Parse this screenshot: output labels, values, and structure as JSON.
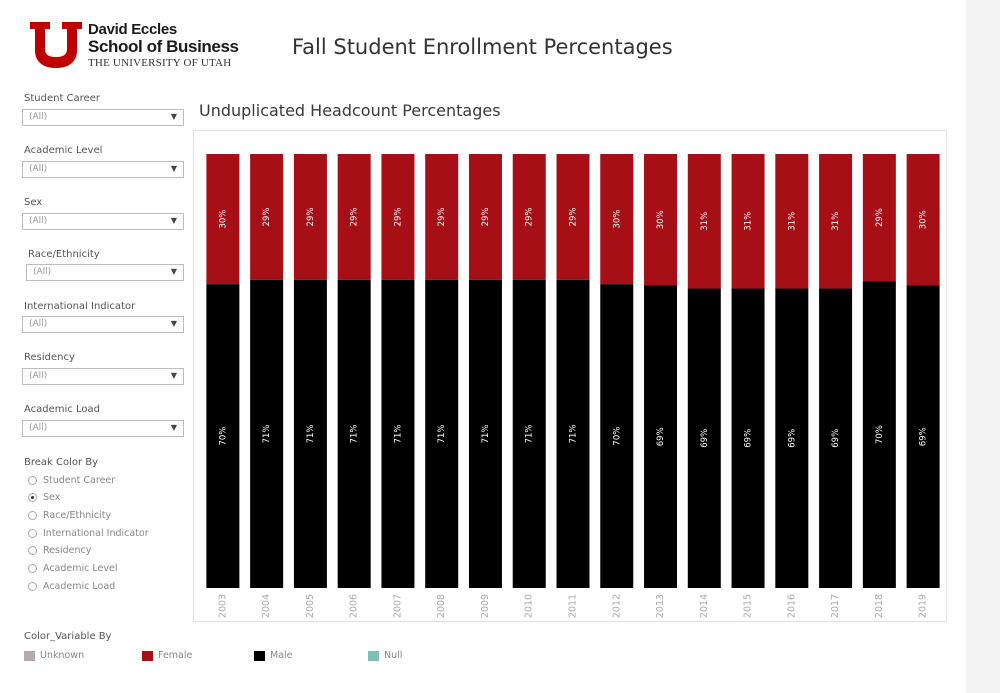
{
  "logo": {
    "line1": "David Eccles",
    "line2": "School of Business",
    "line3": "THE UNIVERSITY OF UTAH",
    "accent_color": "#be0000"
  },
  "page_title": "Fall Student Enrollment Percentages",
  "filters": [
    {
      "label": "Student Career",
      "value": "(All)"
    },
    {
      "label": "Academic Level",
      "value": "(All)"
    },
    {
      "label": "Sex",
      "value": "(All)"
    },
    {
      "label": "Race/Ethnicity",
      "value": "(All)"
    },
    {
      "label": "International Indicator",
      "value": "(All)"
    },
    {
      "label": "Residency",
      "value": "(All)"
    },
    {
      "label": "Academic Load",
      "value": "(All)"
    }
  ],
  "break_color": {
    "title": "Break Color By",
    "options": [
      "Student Career",
      "Sex",
      "Race/Ethnicity",
      "International Indicator",
      "Residency",
      "Academic Level",
      "Academic Load"
    ],
    "selected": "Sex"
  },
  "legend": {
    "title": "Color_Variable By",
    "items": [
      {
        "label": "Unknown",
        "color": "#b8aaaa"
      },
      {
        "label": "Female",
        "color": "#a50f15"
      },
      {
        "label": "Male",
        "color": "#000000"
      },
      {
        "label": "Null",
        "color": "#7fbfb5"
      }
    ]
  },
  "chart_data": {
    "type": "bar",
    "stacked": true,
    "normalized": true,
    "title": "Unduplicated Headcount Percentages",
    "categories": [
      "2003",
      "2004",
      "2005",
      "2006",
      "2007",
      "2008",
      "2009",
      "2010",
      "2011",
      "2012",
      "2013",
      "2014",
      "2015",
      "2016",
      "2017",
      "2018",
      "2019"
    ],
    "series": [
      {
        "name": "Male",
        "color": "#000000",
        "values": [
          70,
          71,
          71,
          71,
          71,
          71,
          71,
          71,
          71,
          70,
          69,
          69,
          69,
          69,
          69,
          70,
          69
        ]
      },
      {
        "name": "Female",
        "color": "#a50f15",
        "values": [
          30,
          29,
          29,
          29,
          29,
          29,
          29,
          29,
          29,
          30,
          30,
          31,
          31,
          31,
          31,
          29,
          30
        ]
      }
    ],
    "labels": {
      "Male": [
        "70%",
        "71%",
        "71%",
        "71%",
        "71%",
        "71%",
        "71%",
        "71%",
        "71%",
        "70%",
        "69%",
        "69%",
        "69%",
        "69%",
        "69%",
        "70%",
        "69%"
      ],
      "Female": [
        "30%",
        "29%",
        "29%",
        "29%",
        "29%",
        "29%",
        "29%",
        "29%",
        "29%",
        "30%",
        "30%",
        "31%",
        "31%",
        "31%",
        "31%",
        "29%",
        "30%"
      ]
    },
    "ylim": [
      0,
      100
    ],
    "grid": false
  }
}
